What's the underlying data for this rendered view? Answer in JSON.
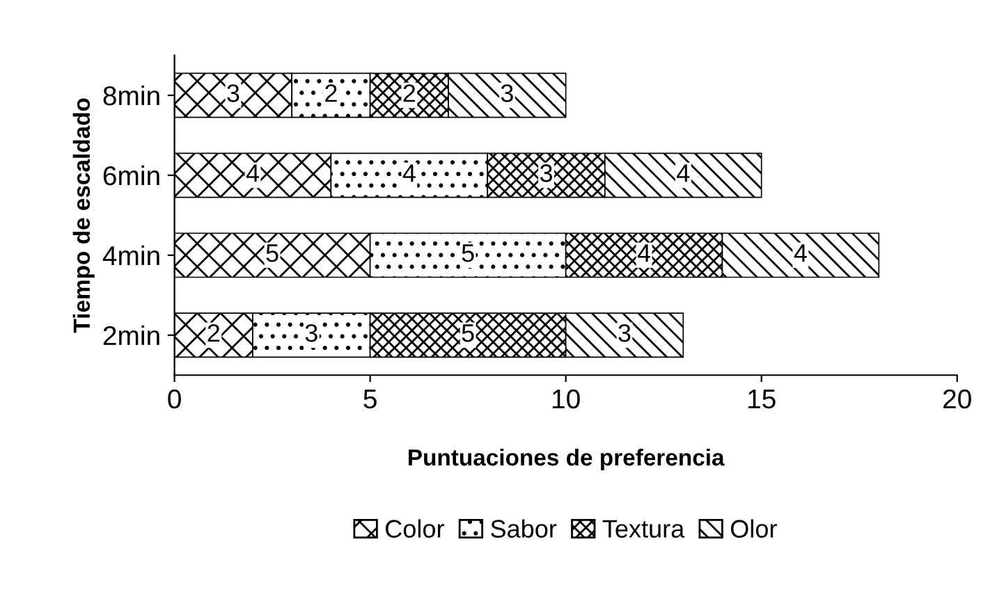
{
  "chart_data": {
    "type": "bar",
    "orientation": "horizontal",
    "stacked": true,
    "xlabel": "Puntuaciones de preferencia",
    "ylabel": "Tiempo de escaldado",
    "categories": [
      "8min",
      "6min",
      "4min",
      "2min"
    ],
    "series": [
      {
        "name": "Color",
        "values": [
          3,
          4,
          5,
          2
        ]
      },
      {
        "name": "Sabor",
        "values": [
          2,
          4,
          5,
          3
        ]
      },
      {
        "name": "Textura",
        "values": [
          2,
          3,
          4,
          5
        ]
      },
      {
        "name": "Olor",
        "values": [
          3,
          4,
          4,
          3
        ]
      }
    ],
    "xlim": [
      0,
      20
    ],
    "xticks": [
      0,
      5,
      10,
      15,
      20
    ],
    "data_labels": true,
    "grid": false,
    "legend": "bottom"
  }
}
